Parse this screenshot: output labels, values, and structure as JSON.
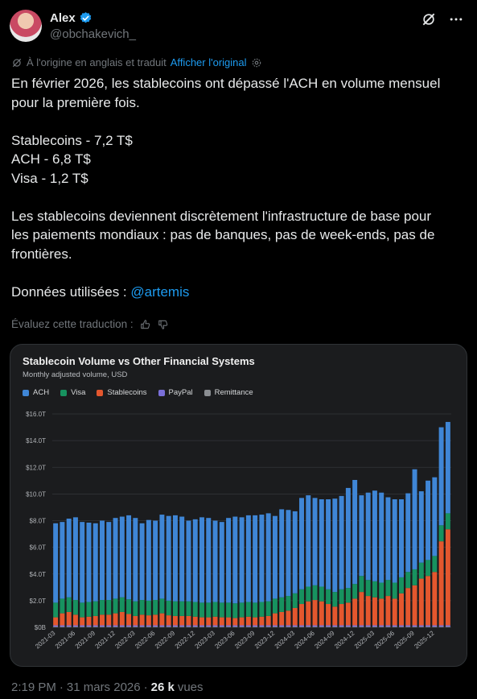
{
  "author": {
    "name": "Alex",
    "handle": "@obchakevich_"
  },
  "translation": {
    "note": "À l'origine en anglais et traduit",
    "show_original": "Afficher l'original"
  },
  "post": {
    "line1": "En février 2026, les stablecoins ont dépassé l'ACH en volume mensuel",
    "line2": "pour la première fois.",
    "stat1": "Stablecoins - 7,2 T$",
    "stat2": "ACH - 6,8 T$",
    "stat3": "Visa - 1,2 T$",
    "line3": "Les stablecoins deviennent discrètement l'infrastructure de base pour",
    "line4": "les paiements mondiaux : pas de banques, pas de week-ends, pas de",
    "line5": "frontières.",
    "data_prefix": "Données utilisées : ",
    "mention": "@artemis"
  },
  "rate_translation": "Évaluez cette traduction :",
  "footer": {
    "time": "2:19 PM",
    "sep": "·",
    "date": "31 mars 2026",
    "views_count": "26 k",
    "views_label": "vues"
  },
  "colors": {
    "ach": "#3f86d6",
    "visa": "#17925f",
    "stablecoins": "#e4572e",
    "paypal": "#7a6fd8",
    "remittance": "#8a8d91",
    "link": "#1d9bf0"
  },
  "chart_data": {
    "type": "bar",
    "stacked": true,
    "title": "Stablecoin Volume vs Other Financial Systems",
    "subtitle": "Monthly adjusted volume, USD",
    "ylim": [
      0,
      16
    ],
    "yticks": [
      "$0B",
      "$2.0T",
      "$4.0T",
      "$6.0T",
      "$8.0T",
      "$10.0T",
      "$12.0T",
      "$14.0T",
      "$16.0T"
    ],
    "xticks": [
      "2021-03",
      "2021-06",
      "2021-09",
      "2021-12",
      "2022-03",
      "2022-06",
      "2022-09",
      "2022-12",
      "2023-03",
      "2023-06",
      "2023-09",
      "2023-12",
      "2024-03",
      "2024-06",
      "2024-09",
      "2024-12",
      "2025-03",
      "2025-06",
      "2025-09",
      "2025-12"
    ],
    "legend_position": "top-left",
    "series": [
      {
        "name": "Remittance",
        "values": [
          0.05,
          0.05,
          0.05,
          0.05,
          0.05,
          0.05,
          0.05,
          0.05,
          0.05,
          0.05,
          0.05,
          0.05,
          0.05,
          0.05,
          0.05,
          0.05,
          0.05,
          0.05,
          0.05,
          0.05,
          0.05,
          0.05,
          0.05,
          0.05,
          0.05,
          0.05,
          0.05,
          0.05,
          0.05,
          0.05,
          0.05,
          0.05,
          0.05,
          0.05,
          0.05,
          0.05,
          0.05,
          0.05,
          0.05,
          0.05,
          0.05,
          0.05,
          0.05,
          0.05,
          0.05,
          0.05,
          0.05,
          0.05,
          0.05,
          0.05,
          0.05,
          0.05,
          0.05,
          0.05,
          0.05,
          0.05,
          0.05,
          0.05,
          0.05,
          0.05
        ]
      },
      {
        "name": "PayPal",
        "values": [
          0.1,
          0.1,
          0.1,
          0.1,
          0.1,
          0.1,
          0.1,
          0.1,
          0.1,
          0.1,
          0.1,
          0.1,
          0.1,
          0.1,
          0.1,
          0.1,
          0.1,
          0.1,
          0.1,
          0.1,
          0.1,
          0.1,
          0.1,
          0.1,
          0.1,
          0.1,
          0.1,
          0.1,
          0.1,
          0.1,
          0.1,
          0.1,
          0.1,
          0.1,
          0.1,
          0.1,
          0.1,
          0.1,
          0.1,
          0.1,
          0.1,
          0.1,
          0.1,
          0.1,
          0.1,
          0.1,
          0.1,
          0.1,
          0.1,
          0.1,
          0.1,
          0.1,
          0.1,
          0.1,
          0.1,
          0.1,
          0.1,
          0.1,
          0.1,
          0.1
        ]
      },
      {
        "name": "Stablecoins",
        "values": [
          0.6,
          0.9,
          1.0,
          0.8,
          0.6,
          0.65,
          0.7,
          0.8,
          0.8,
          0.9,
          1.0,
          0.85,
          0.7,
          0.8,
          0.75,
          0.8,
          0.9,
          0.75,
          0.7,
          0.7,
          0.7,
          0.65,
          0.6,
          0.6,
          0.65,
          0.6,
          0.6,
          0.55,
          0.6,
          0.65,
          0.6,
          0.65,
          0.7,
          0.9,
          1.0,
          1.1,
          1.3,
          1.6,
          1.8,
          1.9,
          1.8,
          1.6,
          1.4,
          1.6,
          1.7,
          2.0,
          2.5,
          2.2,
          2.1,
          2.0,
          2.2,
          2.0,
          2.4,
          2.8,
          3.0,
          3.5,
          3.7,
          4.0,
          6.3,
          7.2
        ]
      },
      {
        "name": "Visa",
        "values": [
          1.1,
          1.1,
          1.1,
          1.1,
          1.1,
          1.1,
          1.1,
          1.1,
          1.1,
          1.1,
          1.1,
          1.1,
          1.1,
          1.1,
          1.1,
          1.1,
          1.1,
          1.1,
          1.1,
          1.1,
          1.1,
          1.1,
          1.1,
          1.1,
          1.1,
          1.1,
          1.1,
          1.1,
          1.1,
          1.1,
          1.1,
          1.1,
          1.1,
          1.1,
          1.1,
          1.1,
          1.1,
          1.1,
          1.1,
          1.1,
          1.1,
          1.1,
          1.1,
          1.1,
          1.1,
          1.1,
          1.2,
          1.2,
          1.2,
          1.2,
          1.2,
          1.2,
          1.2,
          1.2,
          1.2,
          1.2,
          1.2,
          1.2,
          1.2,
          1.2
        ]
      },
      {
        "name": "ACH",
        "values": [
          5.95,
          5.75,
          5.9,
          6.2,
          6.05,
          5.95,
          5.85,
          5.95,
          5.85,
          6.05,
          6.05,
          6.3,
          6.25,
          5.75,
          6.05,
          5.95,
          6.3,
          6.35,
          6.45,
          6.35,
          6.05,
          6.2,
          6.4,
          6.35,
          6.1,
          6.05,
          6.35,
          6.5,
          6.4,
          6.5,
          6.55,
          6.55,
          6.6,
          6.2,
          6.6,
          6.45,
          6.15,
          6.85,
          6.85,
          6.55,
          6.55,
          6.75,
          7.0,
          7.0,
          7.5,
          7.8,
          6.05,
          6.55,
          6.8,
          6.75,
          6.2,
          6.25,
          5.85,
          5.9,
          7.5,
          5.35,
          5.95,
          5.9,
          7.35,
          6.85
        ]
      }
    ]
  }
}
